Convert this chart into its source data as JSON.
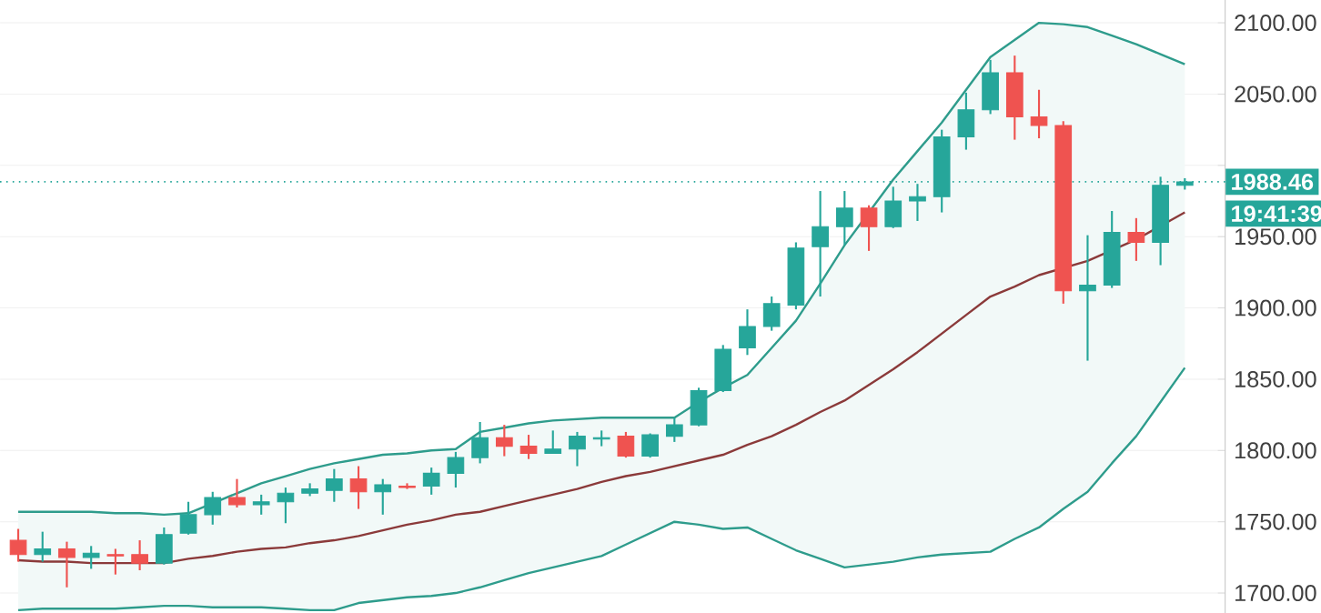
{
  "chart_data": {
    "type": "candlestick",
    "categories": [
      null,
      null,
      null,
      null,
      null,
      null,
      null,
      null,
      null,
      null,
      null,
      null,
      null,
      null,
      null,
      null,
      null,
      null,
      null,
      null,
      null,
      null,
      null,
      null,
      null,
      null,
      null,
      null,
      null,
      null,
      null,
      null,
      null,
      null,
      null,
      null,
      null,
      null,
      null,
      null,
      null,
      null,
      null,
      null,
      null,
      null,
      null,
      null,
      null
    ],
    "ohlc": [
      [
        1737,
        1745,
        1722,
        1727
      ],
      [
        1727,
        1743,
        1722,
        1731
      ],
      [
        1731,
        1736,
        1704,
        1725
      ],
      [
        1725,
        1733,
        1717,
        1728
      ],
      [
        1727,
        1731,
        1713,
        1726
      ],
      [
        1727,
        1737,
        1716,
        1721
      ],
      [
        1721,
        1746,
        1720,
        1741
      ],
      [
        1742,
        1764,
        1741,
        1755
      ],
      [
        1755,
        1771,
        1748,
        1767
      ],
      [
        1767,
        1780,
        1760,
        1762
      ],
      [
        1762,
        1769,
        1755,
        1764
      ],
      [
        1764,
        1774,
        1749,
        1770
      ],
      [
        1770,
        1777,
        1768,
        1773
      ],
      [
        1772,
        1787,
        1764,
        1780
      ],
      [
        1780,
        1789,
        1759,
        1771
      ],
      [
        1771,
        1780,
        1755,
        1776
      ],
      [
        1775,
        1777,
        1773,
        1774
      ],
      [
        1775,
        1788,
        1769,
        1784
      ],
      [
        1784,
        1799,
        1774,
        1795
      ],
      [
        1795,
        1820,
        1791,
        1809
      ],
      [
        1809,
        1818,
        1796,
        1803
      ],
      [
        1803,
        1811,
        1794,
        1798
      ],
      [
        1798,
        1814,
        1798,
        1801
      ],
      [
        1801,
        1813,
        1789,
        1810
      ],
      [
        1808,
        1814,
        1803,
        1809
      ],
      [
        1810,
        1813,
        1795,
        1796
      ],
      [
        1796,
        1812,
        1795,
        1811
      ],
      [
        1810,
        1823,
        1806,
        1818
      ],
      [
        1818,
        1844,
        1817,
        1842
      ],
      [
        1842,
        1874,
        1841,
        1871
      ],
      [
        1872,
        1899,
        1867,
        1887
      ],
      [
        1887,
        1908,
        1884,
        1903
      ],
      [
        1902,
        1946,
        1899,
        1942
      ],
      [
        1943,
        1982,
        1908,
        1957
      ],
      [
        1957,
        1982,
        1944,
        1970
      ],
      [
        1970,
        1972,
        1940,
        1957
      ],
      [
        1957,
        1985,
        1956,
        1975
      ],
      [
        1975,
        1987,
        1961,
        1978
      ],
      [
        1978,
        2025,
        1967,
        2020
      ],
      [
        2020,
        2051,
        2011,
        2039
      ],
      [
        2039,
        2074,
        2036,
        2065
      ],
      [
        2065,
        2077,
        2018,
        2034
      ],
      [
        2034,
        2053,
        2019,
        2028
      ],
      [
        2028,
        2031,
        1903,
        1912
      ],
      [
        1912,
        1951,
        1863,
        1916
      ],
      [
        1916,
        1968,
        1914,
        1953
      ],
      [
        1953,
        1963,
        1933,
        1946
      ],
      [
        1946,
        1992,
        1930,
        1986
      ],
      [
        1986,
        1991,
        1983,
        1988.46
      ]
    ],
    "colors": [
      "#ef5350",
      "#26a69a",
      "#ef5350",
      "#26a69a",
      "#ef5350",
      "#ef5350",
      "#26a69a",
      "#26a69a",
      "#26a69a",
      "#ef5350",
      "#26a69a",
      "#26a69a",
      "#26a69a",
      "#26a69a",
      "#ef5350",
      "#26a69a",
      "#ef5350",
      "#26a69a",
      "#26a69a",
      "#26a69a",
      "#ef5350",
      "#ef5350",
      "#26a69a",
      "#26a69a",
      "#26a69a",
      "#ef5350",
      "#26a69a",
      "#26a69a",
      "#26a69a",
      "#26a69a",
      "#26a69a",
      "#26a69a",
      "#26a69a",
      "#26a69a",
      "#26a69a",
      "#ef5350",
      "#26a69a",
      "#26a69a",
      "#26a69a",
      "#26a69a",
      "#26a69a",
      "#ef5350",
      "#ef5350",
      "#ef5350",
      "#26a69a",
      "#26a69a",
      "#ef5350",
      "#26a69a",
      "#26a69a"
    ],
    "series": [
      {
        "type": "line",
        "color": "#2e9c8c",
        "values": [
          1757,
          1757,
          1757,
          1757,
          1756,
          1756,
          1755,
          1756,
          1763,
          1770,
          1777,
          1782,
          1787,
          1791,
          1794,
          1797,
          1798,
          1800,
          1801,
          1813,
          1816,
          1819,
          1821,
          1822,
          1823,
          1823,
          1823,
          1823,
          1834,
          1844,
          1853,
          1872,
          1891,
          1917,
          1944,
          1967,
          1990,
          2010,
          2030,
          2053,
          2076,
          2088,
          2100,
          2099,
          2097,
          2091,
          2085,
          2078,
          2071
        ]
      },
      {
        "type": "line",
        "color": "#8b3a3a",
        "values": [
          1723,
          1722,
          1722,
          1721,
          1721,
          1721,
          1721,
          1724,
          1726,
          1729,
          1731,
          1732,
          1735,
          1737,
          1740,
          1744,
          1748,
          1751,
          1755,
          1757,
          1761,
          1765,
          1769,
          1773,
          1778,
          1782,
          1785,
          1789,
          1793,
          1797,
          1804,
          1810,
          1818,
          1827,
          1835,
          1846,
          1857,
          1869,
          1882,
          1895,
          1908,
          1915,
          1923,
          null,
          1933,
          null,
          1948,
          null,
          1967
        ],
        "upper": [
          1757,
          1757,
          1757,
          1757,
          1756,
          1756,
          1755,
          1756,
          1763,
          1770,
          1777,
          1782,
          1787,
          1791,
          1794,
          1797,
          1798,
          1800,
          1801,
          1813,
          1816,
          1819,
          1821,
          1822,
          1823,
          1823,
          1823,
          1823,
          1834,
          1844,
          1853,
          1872,
          1891,
          1917,
          1944,
          1967,
          1990,
          2010,
          2030,
          2053,
          2076,
          2088,
          2100,
          2099,
          2097,
          2091,
          2085,
          2078,
          2071
        ],
        "lower": [
          1688,
          1689,
          1689,
          1689,
          1689,
          1690,
          1691,
          1691,
          1690,
          1690,
          1690,
          1689,
          1688,
          1688,
          1693,
          1695,
          1697,
          1698,
          1700,
          1704,
          1709,
          1714,
          1718,
          1722,
          1726,
          1734,
          1742,
          1750,
          1748,
          1745,
          1746,
          1738,
          1730,
          1724,
          1718,
          1720,
          1722,
          1725,
          1727,
          1728,
          1729,
          1738,
          1746,
          1759,
          1771,
          1791,
          1810,
          1834,
          1858
        ]
      },
      {
        "type": "line",
        "color": "#2e9c8c",
        "values": [
          1688,
          1689,
          1689,
          1689,
          1689,
          1690,
          1691,
          1691,
          1690,
          1690,
          1690,
          1689,
          1688,
          1688,
          1693,
          1695,
          1697,
          1698,
          1700,
          1704,
          1709,
          1714,
          1718,
          1722,
          1726,
          1734,
          1742,
          1750,
          1748,
          1745,
          1746,
          1738,
          1730,
          1724,
          1718,
          1720,
          1722,
          1725,
          1727,
          1728,
          1729,
          1738,
          1746,
          1759,
          1771,
          1791,
          1810,
          1834,
          1858
        ]
      }
    ],
    "ylim": [
      1686,
      2116
    ],
    "yticks": [
      {
        "value": 1700,
        "label": "1700.00"
      },
      {
        "value": 1750,
        "label": "1750.00"
      },
      {
        "value": 1800,
        "label": "1800.00"
      },
      {
        "value": 1850,
        "label": "1850.00"
      },
      {
        "value": 1900,
        "label": "1900.00"
      },
      {
        "value": 1950,
        "label": "1950.00"
      },
      {
        "value": 2000,
        "label": null
      },
      {
        "value": 2050,
        "label": "2050.00"
      },
      {
        "value": 2100,
        "label": "2100.00"
      }
    ],
    "ref_lines": [
      {
        "axis": "y",
        "value": 1988.46,
        "label": "1988.46",
        "color": "#26a69a",
        "line_style": "dotted"
      }
    ],
    "annotations": [
      "19:41:39"
    ],
    "grid": "y"
  }
}
